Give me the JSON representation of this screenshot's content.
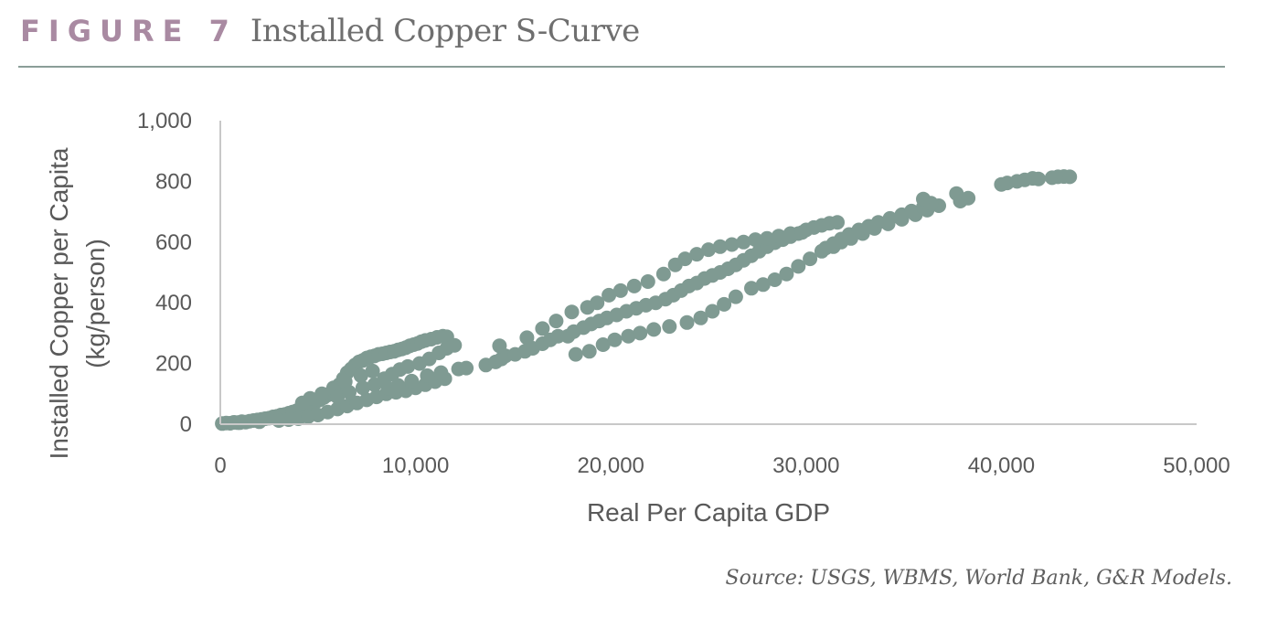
{
  "header": {
    "figure_label": "FIGURE 7",
    "title": "Installed Copper S-Curve"
  },
  "source": "Source: USGS, WBMS, World Bank, G&R Models.",
  "colors": {
    "accent": "#a98aa2",
    "marker": "#7f9a92",
    "axis": "#c8c8c8",
    "text": "#595959"
  },
  "chart_data": {
    "type": "scatter",
    "title": "Installed Copper S-Curve",
    "xlabel": "Real Per Capita GDP",
    "ylabel": [
      "Installed Copper per Capita",
      "(kg/person)"
    ],
    "xlim": [
      0,
      50000
    ],
    "ylim": [
      0,
      1000
    ],
    "xticks": [
      0,
      10000,
      20000,
      30000,
      40000,
      50000
    ],
    "xtick_labels": [
      "0",
      "10,000",
      "20,000",
      "30,000",
      "40,000",
      "50,000"
    ],
    "yticks": [
      0,
      200,
      400,
      600,
      800,
      1000
    ],
    "ytick_labels": [
      "0",
      "200",
      "400",
      "600",
      "800",
      "1,000"
    ],
    "grid": false,
    "legend": "none",
    "series": [
      {
        "points": [
          [
            100,
            2
          ],
          [
            300,
            4
          ],
          [
            500,
            3
          ],
          [
            700,
            6
          ],
          [
            900,
            5
          ],
          [
            1100,
            8
          ],
          [
            1300,
            7
          ],
          [
            1500,
            10
          ],
          [
            1700,
            12
          ],
          [
            1900,
            14
          ],
          [
            2100,
            16
          ],
          [
            2300,
            18
          ],
          [
            2500,
            20
          ],
          [
            2700,
            24
          ],
          [
            2900,
            26
          ],
          [
            3100,
            30
          ],
          [
            3300,
            32
          ],
          [
            3500,
            36
          ],
          [
            3700,
            40
          ],
          [
            3900,
            44
          ],
          [
            4100,
            48
          ],
          [
            4300,
            55
          ],
          [
            4500,
            60
          ],
          [
            4700,
            66
          ],
          [
            4900,
            74
          ],
          [
            5100,
            80
          ],
          [
            5300,
            88
          ],
          [
            5500,
            96
          ],
          [
            5700,
            106
          ],
          [
            5900,
            118
          ],
          [
            6100,
            130
          ],
          [
            6300,
            150
          ],
          [
            6500,
            170
          ],
          [
            6700,
            182
          ],
          [
            6900,
            195
          ],
          [
            7100,
            205
          ],
          [
            7300,
            210
          ],
          [
            7500,
            218
          ],
          [
            7700,
            222
          ],
          [
            7900,
            225
          ],
          [
            8100,
            230
          ],
          [
            8300,
            232
          ],
          [
            8500,
            235
          ],
          [
            8700,
            238
          ],
          [
            8900,
            240
          ],
          [
            9100,
            245
          ],
          [
            9300,
            248
          ],
          [
            9500,
            252
          ],
          [
            9700,
            258
          ],
          [
            9900,
            262
          ],
          [
            10100,
            266
          ],
          [
            10300,
            272
          ],
          [
            10500,
            276
          ],
          [
            10800,
            280
          ],
          [
            11100,
            286
          ],
          [
            11400,
            290
          ],
          [
            11600,
            288
          ],
          [
            1000,
            5
          ],
          [
            2000,
            8
          ],
          [
            3000,
            12
          ],
          [
            3500,
            15
          ],
          [
            4000,
            18
          ],
          [
            4500,
            25
          ],
          [
            5000,
            30
          ],
          [
            5500,
            40
          ],
          [
            6000,
            50
          ],
          [
            6500,
            60
          ],
          [
            7000,
            70
          ],
          [
            7500,
            80
          ],
          [
            8000,
            90
          ],
          [
            8500,
            100
          ],
          [
            9000,
            105
          ],
          [
            9500,
            110
          ],
          [
            10000,
            120
          ],
          [
            10500,
            130
          ],
          [
            11000,
            140
          ],
          [
            11500,
            150
          ],
          [
            4200,
            70
          ],
          [
            4600,
            85
          ],
          [
            5200,
            100
          ],
          [
            5800,
            120
          ],
          [
            6400,
            140
          ],
          [
            7200,
            160
          ],
          [
            7800,
            175
          ],
          [
            8400,
            150
          ],
          [
            8800,
            165
          ],
          [
            9200,
            180
          ],
          [
            9600,
            190
          ],
          [
            10200,
            200
          ],
          [
            10700,
            215
          ],
          [
            11200,
            235
          ],
          [
            11600,
            250
          ],
          [
            12000,
            260
          ],
          [
            6000,
            90
          ],
          [
            6600,
            105
          ],
          [
            7300,
            120
          ],
          [
            7900,
            130
          ],
          [
            8600,
            118
          ],
          [
            9100,
            128
          ],
          [
            9800,
            142
          ],
          [
            10600,
            160
          ],
          [
            11300,
            170
          ],
          [
            12200,
            182
          ],
          [
            12600,
            185
          ],
          [
            13600,
            195
          ],
          [
            14100,
            205
          ],
          [
            14400,
            215
          ],
          [
            14600,
            225
          ],
          [
            15100,
            230
          ],
          [
            15600,
            240
          ],
          [
            16000,
            250
          ],
          [
            16500,
            265
          ],
          [
            16900,
            278
          ],
          [
            17300,
            290
          ],
          [
            17800,
            290
          ],
          [
            18100,
            305
          ],
          [
            18600,
            318
          ],
          [
            19000,
            330
          ],
          [
            19400,
            340
          ],
          [
            19800,
            350
          ],
          [
            20300,
            360
          ],
          [
            20800,
            372
          ],
          [
            21300,
            382
          ],
          [
            21800,
            392
          ],
          [
            22300,
            400
          ],
          [
            22800,
            412
          ],
          [
            23200,
            425
          ],
          [
            23600,
            440
          ],
          [
            24000,
            455
          ],
          [
            24400,
            465
          ],
          [
            24800,
            480
          ],
          [
            25200,
            490
          ],
          [
            25600,
            500
          ],
          [
            26000,
            512
          ],
          [
            26400,
            525
          ],
          [
            26800,
            540
          ],
          [
            27200,
            555
          ],
          [
            27600,
            570
          ],
          [
            28000,
            585
          ],
          [
            28400,
            598
          ],
          [
            28800,
            608
          ],
          [
            29200,
            618
          ],
          [
            29600,
            628
          ],
          [
            30000,
            640
          ],
          [
            30400,
            648
          ],
          [
            30800,
            655
          ],
          [
            31200,
            662
          ],
          [
            31600,
            665
          ],
          [
            14300,
            258
          ],
          [
            15700,
            285
          ],
          [
            16500,
            315
          ],
          [
            17200,
            340
          ],
          [
            18000,
            370
          ],
          [
            18800,
            385
          ],
          [
            19300,
            400
          ],
          [
            19900,
            425
          ],
          [
            20500,
            440
          ],
          [
            21200,
            455
          ],
          [
            21900,
            470
          ],
          [
            22700,
            495
          ],
          [
            23300,
            525
          ],
          [
            23800,
            545
          ],
          [
            24400,
            560
          ],
          [
            25000,
            575
          ],
          [
            25600,
            585
          ],
          [
            26200,
            592
          ],
          [
            26800,
            600
          ],
          [
            27400,
            608
          ],
          [
            28000,
            612
          ],
          [
            28600,
            620
          ],
          [
            29200,
            628
          ],
          [
            29800,
            632
          ],
          [
            18200,
            230
          ],
          [
            18900,
            240
          ],
          [
            19600,
            262
          ],
          [
            20200,
            278
          ],
          [
            20900,
            290
          ],
          [
            21500,
            300
          ],
          [
            22200,
            312
          ],
          [
            23000,
            322
          ],
          [
            23900,
            335
          ],
          [
            24600,
            350
          ],
          [
            25200,
            372
          ],
          [
            25800,
            395
          ],
          [
            26400,
            420
          ],
          [
            27200,
            448
          ],
          [
            27800,
            460
          ],
          [
            28400,
            476
          ],
          [
            29000,
            495
          ],
          [
            29600,
            520
          ],
          [
            30200,
            545
          ],
          [
            30800,
            570
          ],
          [
            31400,
            585
          ],
          [
            31800,
            600
          ],
          [
            32300,
            612
          ],
          [
            32900,
            628
          ],
          [
            33500,
            645
          ],
          [
            34200,
            660
          ],
          [
            34900,
            675
          ],
          [
            35600,
            690
          ],
          [
            36200,
            705
          ],
          [
            36800,
            720
          ],
          [
            31000,
            580
          ],
          [
            31400,
            595
          ],
          [
            31800,
            610
          ],
          [
            32200,
            625
          ],
          [
            32700,
            640
          ],
          [
            33200,
            652
          ],
          [
            33700,
            665
          ],
          [
            34300,
            678
          ],
          [
            34900,
            690
          ],
          [
            35400,
            702
          ],
          [
            36000,
            715
          ],
          [
            36400,
            728
          ],
          [
            36000,
            742
          ],
          [
            37700,
            760
          ],
          [
            37900,
            735
          ],
          [
            38300,
            745
          ],
          [
            40000,
            790
          ],
          [
            40300,
            795
          ],
          [
            40800,
            800
          ],
          [
            41200,
            805
          ],
          [
            41600,
            810
          ],
          [
            41900,
            808
          ],
          [
            42600,
            812
          ],
          [
            42900,
            815
          ],
          [
            43200,
            816
          ],
          [
            43500,
            815
          ]
        ]
      }
    ]
  }
}
